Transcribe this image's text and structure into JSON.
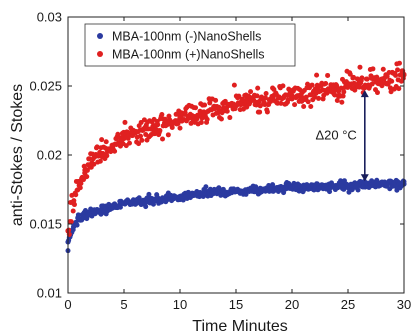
{
  "chart_data": {
    "type": "scatter",
    "xlabel": "Time Minutes",
    "ylabel": "anti-Stokes / Stokes",
    "xlim": [
      0,
      30
    ],
    "ylim": [
      0.01,
      0.03
    ],
    "x_ticks": [
      "0",
      "5",
      "10",
      "15",
      "20",
      "25",
      "30"
    ],
    "y_ticks": [
      "0.01",
      "0.015",
      "0.02",
      "0.025",
      "0.03"
    ],
    "x_tick_values": [
      0,
      5,
      10,
      15,
      20,
      25,
      30
    ],
    "y_tick_values": [
      0.01,
      0.015,
      0.02,
      0.025,
      0.03
    ],
    "grid": false,
    "legend_position": "top-left",
    "series": [
      {
        "name": "MBA-100nm  (-)NanoShells",
        "color": "#2b3aa0",
        "x": [
          0,
          0.5,
          1,
          1.5,
          2,
          3,
          4,
          5,
          6,
          7,
          8,
          9,
          10,
          12,
          14,
          16,
          18,
          20,
          22,
          24,
          26,
          28,
          30
        ],
        "y": [
          0.0137,
          0.0148,
          0.0153,
          0.0156,
          0.0158,
          0.0161,
          0.0163,
          0.0165,
          0.0166,
          0.0167,
          0.0168,
          0.0169,
          0.017,
          0.0172,
          0.0173,
          0.0174,
          0.0175,
          0.0176,
          0.0177,
          0.0177,
          0.0178,
          0.0179,
          0.0179
        ]
      },
      {
        "name": "MBA-100nm  (+)NanoShells",
        "color": "#e02020",
        "x": [
          0,
          0.5,
          1,
          1.5,
          2,
          3,
          4,
          5,
          6,
          7,
          8,
          9,
          10,
          12,
          14,
          16,
          18,
          20,
          22,
          24,
          26,
          28,
          30
        ],
        "y": [
          0.0145,
          0.0165,
          0.0178,
          0.0187,
          0.0193,
          0.0201,
          0.0207,
          0.0212,
          0.0216,
          0.0219,
          0.0222,
          0.0224,
          0.0227,
          0.0231,
          0.0234,
          0.0237,
          0.024,
          0.0243,
          0.0246,
          0.0249,
          0.0252,
          0.0255,
          0.0258
        ]
      }
    ],
    "annotation": {
      "text": "Δ20 °C",
      "x": 26.5,
      "y_top": 0.0247,
      "y_bottom": 0.0181
    }
  }
}
